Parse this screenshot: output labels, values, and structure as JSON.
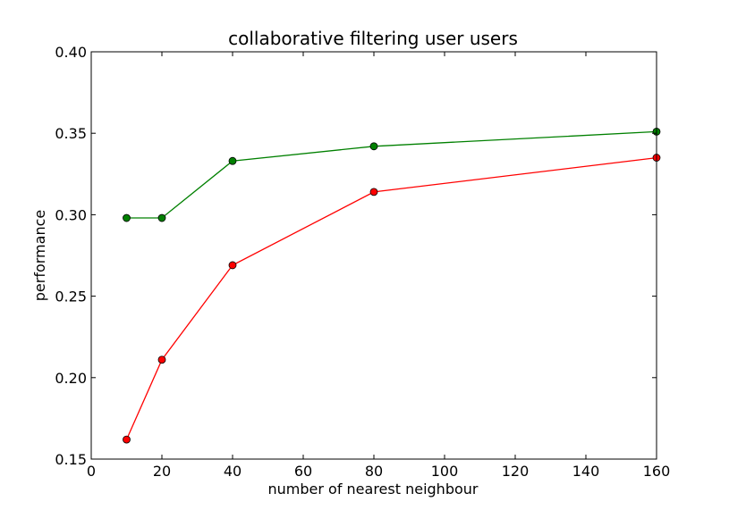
{
  "chart_data": {
    "type": "line",
    "title": "collaborative filtering user users",
    "xlabel": "number of nearest neighbour",
    "ylabel": "performance",
    "xlim": [
      0,
      160
    ],
    "ylim": [
      0.15,
      0.4
    ],
    "xticks": [
      0,
      20,
      40,
      60,
      80,
      100,
      120,
      140,
      160
    ],
    "xtick_labels": [
      "0",
      "20",
      "40",
      "60",
      "80",
      "100",
      "120",
      "140",
      "160"
    ],
    "yticks": [
      0.15,
      0.2,
      0.25,
      0.3,
      0.35,
      0.4
    ],
    "ytick_labels": [
      "0.15",
      "0.20",
      "0.25",
      "0.30",
      "0.35",
      "0.40"
    ],
    "grid": false,
    "legend": "none",
    "x": [
      10,
      20,
      40,
      80,
      160
    ],
    "series": [
      {
        "color": "#008000",
        "values": [
          0.298,
          0.298,
          0.333,
          0.342,
          0.351
        ]
      },
      {
        "color": "#ff0000",
        "values": [
          0.162,
          0.211,
          0.269,
          0.314,
          0.335
        ]
      }
    ]
  }
}
